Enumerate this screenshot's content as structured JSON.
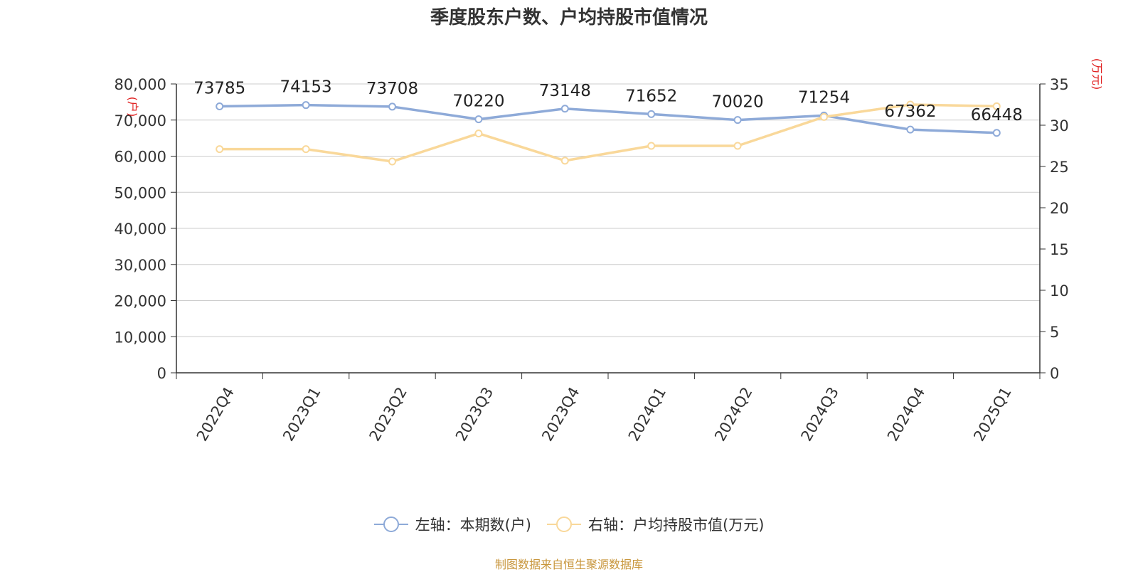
{
  "title": "季度股东户数、户均持股市值情况",
  "source_note": "制图数据来自恒生聚源数据库",
  "chart_data": {
    "type": "line",
    "title": "季度股东户数、户均持股市值情况",
    "categories": [
      "2022Q4",
      "2023Q1",
      "2023Q2",
      "2023Q3",
      "2023Q4",
      "2024Q1",
      "2024Q2",
      "2024Q3",
      "2024Q4",
      "2025Q1"
    ],
    "left_axis": {
      "unit_label": "(户)",
      "ylim": [
        0,
        80000
      ],
      "ticks": [
        "0",
        "10,000",
        "20,000",
        "30,000",
        "40,000",
        "50,000",
        "60,000",
        "70,000",
        "80,000"
      ]
    },
    "right_axis": {
      "unit_label": "(万元)",
      "ylim": [
        0,
        35
      ],
      "ticks": [
        "0",
        "5",
        "10",
        "15",
        "20",
        "25",
        "30",
        "35"
      ]
    },
    "grid": true,
    "legend_position": "bottom",
    "series": [
      {
        "name": "左轴：本期数(户)",
        "axis": "left",
        "color": "#8eaad8",
        "values": [
          73785,
          74153,
          73708,
          70220,
          73148,
          71652,
          70020,
          71254,
          67362,
          66448
        ],
        "data_labels": [
          "73785",
          "74153",
          "73708",
          "70220",
          "73148",
          "71652",
          "70020",
          "71254",
          "67362",
          "66448"
        ]
      },
      {
        "name": "右轴：户均持股市值(万元)",
        "axis": "right",
        "color": "#f9d89a",
        "values": [
          27.1,
          27.1,
          25.6,
          29.0,
          25.7,
          27.5,
          27.5,
          31.0,
          32.5,
          32.3
        ]
      }
    ]
  }
}
